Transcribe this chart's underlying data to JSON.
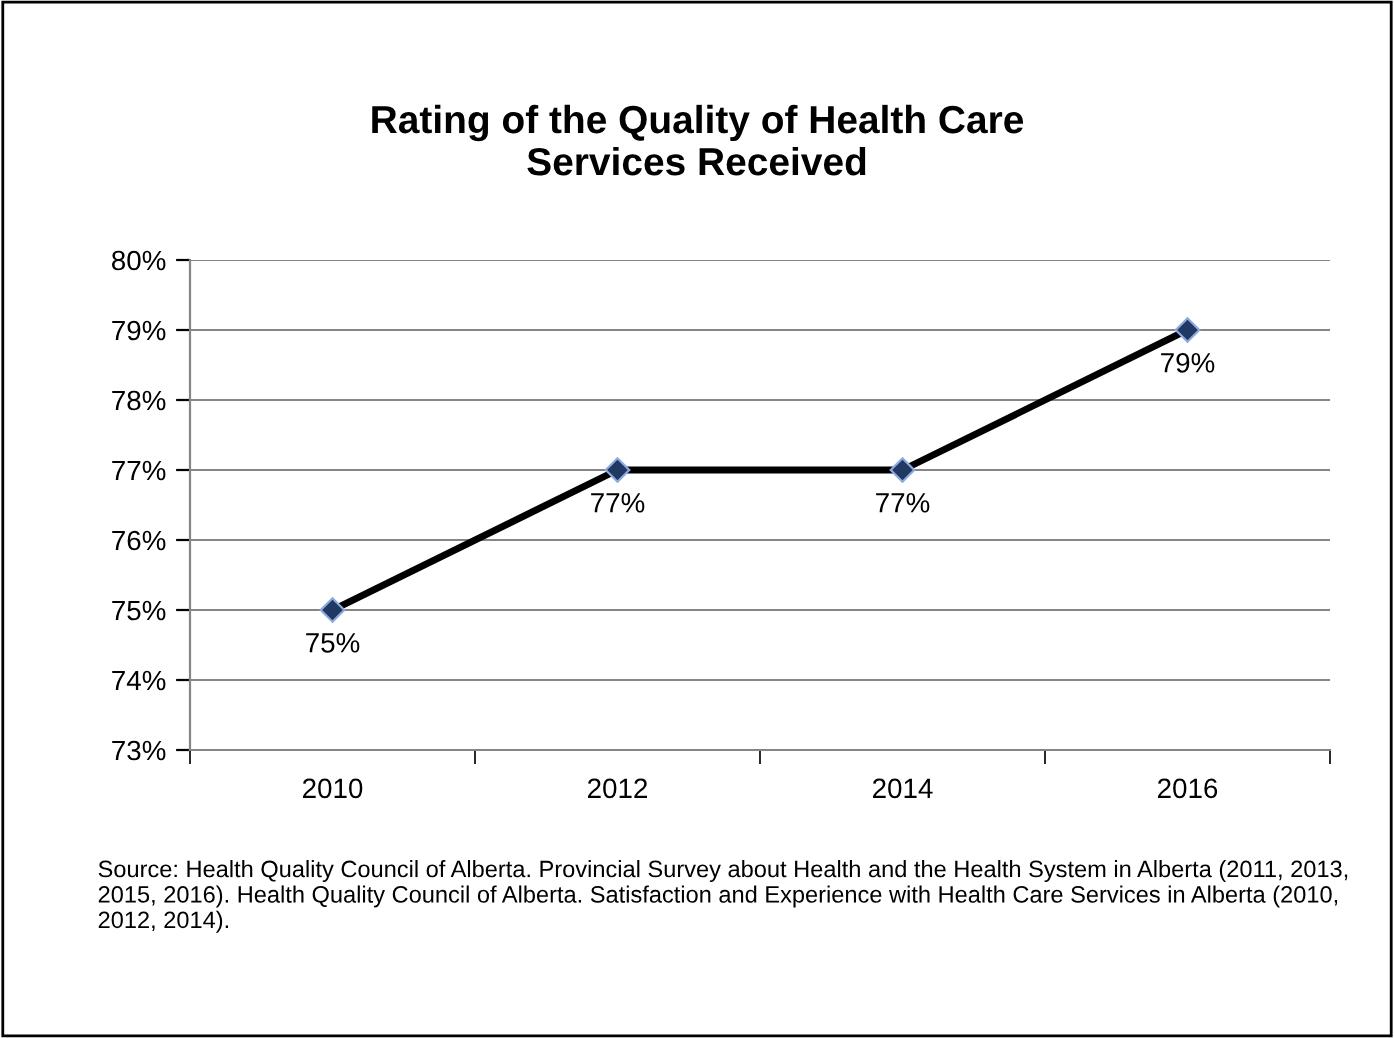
{
  "chart_data": {
    "type": "line",
    "title": "Rating of the Quality of Health Care\nServices Received",
    "categories": [
      "2010",
      "2012",
      "2014",
      "2016"
    ],
    "series": [
      {
        "color": "#000000",
        "values": [
          75,
          77,
          77,
          79
        ],
        "value_labels": [
          "75%",
          "77%",
          "77%",
          "79%"
        ]
      }
    ],
    "ylim": [
      73,
      80
    ],
    "yticks": [
      {
        "value": 73,
        "label": "73%"
      },
      {
        "value": 74,
        "label": "74%"
      },
      {
        "value": 75,
        "label": "75%"
      },
      {
        "value": 76,
        "label": "76%"
      },
      {
        "value": 77,
        "label": "77%"
      },
      {
        "value": 78,
        "label": "78%"
      },
      {
        "value": 79,
        "label": "79%"
      },
      {
        "value": 80,
        "label": "80%"
      }
    ],
    "grid": "y",
    "marker": "diamond",
    "line_style": "solid",
    "annotations": [
      "Source: Health Quality Council of Alberta. Provincial Survey about Health and the Health System in Alberta (2011, 2013, 2015, 2016). Health Quality Council of Alberta. Satisfaction and Experience with Health Care Services in Alberta (2010, 2012, 2014)."
    ]
  }
}
